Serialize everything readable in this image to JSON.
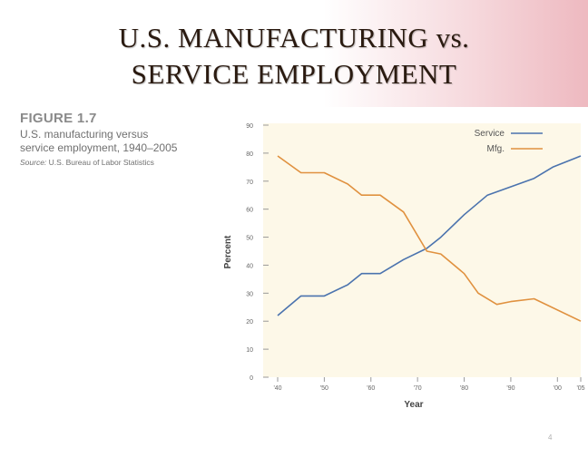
{
  "slide": {
    "title_line1": "U.S. MANUFACTURING vs.",
    "title_line2": "SERVICE EMPLOYMENT",
    "page_number": "4"
  },
  "figure": {
    "label": "FIGURE 1.7",
    "description_line1": "U.S. manufacturing versus",
    "description_line2": "service employment, 1940–2005",
    "source_label": "Source:",
    "source_text": "U.S. Bureau of Labor Statistics"
  },
  "chart_data": {
    "type": "line",
    "xlabel": "Year",
    "ylabel": "Percent",
    "xlim": [
      1940,
      2005
    ],
    "ylim": [
      0,
      90
    ],
    "x_ticks": [
      1940,
      1950,
      1960,
      1970,
      1980,
      1990,
      2000,
      2005
    ],
    "x_tick_labels": [
      "'40",
      "'50",
      "'60",
      "'70",
      "'80",
      "'90",
      "'00",
      "'05"
    ],
    "y_ticks": [
      0,
      10,
      20,
      30,
      40,
      50,
      60,
      70,
      80,
      90
    ],
    "y_tick_labels": [
      "0",
      "10",
      "20",
      "30",
      "40",
      "50",
      "60",
      "70",
      "80",
      "90"
    ],
    "grid": false,
    "legend": "top-right",
    "series": [
      {
        "name": "Service",
        "color": "#4b73ae",
        "points": [
          [
            1940,
            22
          ],
          [
            1945,
            29
          ],
          [
            1950,
            29
          ],
          [
            1955,
            33
          ],
          [
            1958,
            37
          ],
          [
            1962,
            37
          ],
          [
            1967,
            42
          ],
          [
            1972,
            46
          ],
          [
            1975,
            50
          ],
          [
            1980,
            58
          ],
          [
            1985,
            65
          ],
          [
            1990,
            68
          ],
          [
            1995,
            71
          ],
          [
            1999,
            75
          ],
          [
            2005,
            79
          ]
        ]
      },
      {
        "name": "Mfg.",
        "color": "#e0913f",
        "points": [
          [
            1940,
            79
          ],
          [
            1945,
            73
          ],
          [
            1950,
            73
          ],
          [
            1955,
            69
          ],
          [
            1958,
            65
          ],
          [
            1962,
            65
          ],
          [
            1967,
            59
          ],
          [
            1972,
            45
          ],
          [
            1975,
            44
          ],
          [
            1980,
            37
          ],
          [
            1983,
            30
          ],
          [
            1987,
            26
          ],
          [
            1990,
            27
          ],
          [
            1995,
            28
          ],
          [
            2005,
            20
          ]
        ]
      }
    ]
  }
}
